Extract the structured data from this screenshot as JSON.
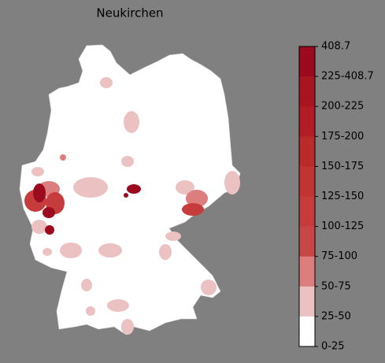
{
  "title": "Neukirchen",
  "colorbar": {
    "labels": [
      "408.7",
      "225-408.7",
      "200-225",
      "175-200",
      "150-175",
      "125-150",
      "100-125",
      "75-100",
      "50-75",
      "25-50",
      "0-25"
    ],
    "colors": [
      "#9b0a1f",
      "#a8141f",
      "#b21c25",
      "#bb2a2b",
      "#c23434",
      "#c63c3c",
      "#c94646",
      "#dc7e7e",
      "#ecc1c1",
      "#ffffff"
    ]
  }
}
